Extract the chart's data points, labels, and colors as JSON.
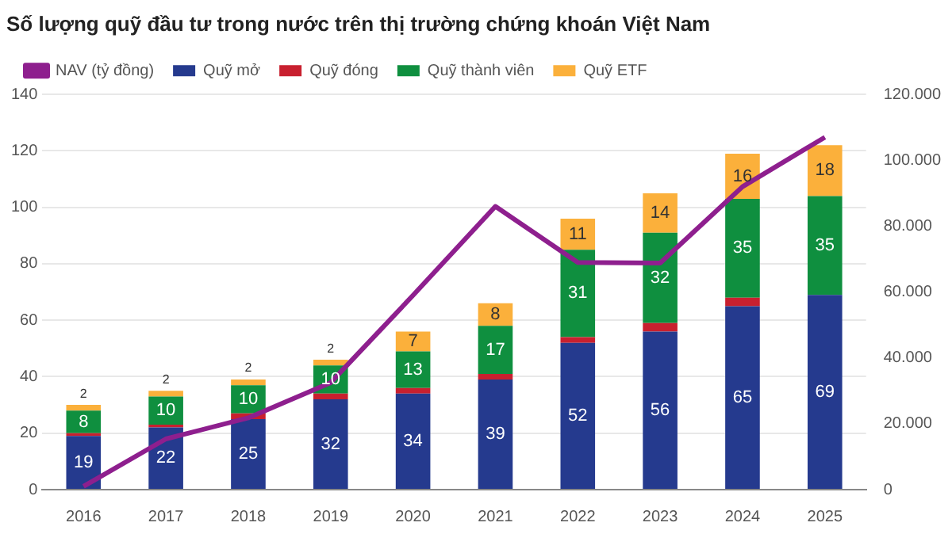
{
  "chart_data": {
    "type": "bar",
    "title": "Số lượng quỹ đầu tư trong nước trên thị trường chứng khoán Việt Nam",
    "stacked": true,
    "categories": [
      "2016",
      "2017",
      "2018",
      "2019",
      "2020",
      "2021",
      "2022",
      "2023",
      "2024",
      "2025"
    ],
    "series": [
      {
        "name": "Quỹ mở",
        "color": "#253a8e",
        "values": [
          19,
          22,
          25,
          32,
          34,
          39,
          52,
          56,
          65,
          69
        ],
        "value_labels": [
          "19",
          "22",
          "25",
          "32",
          "34",
          "39",
          "52",
          "56",
          "65",
          "69"
        ]
      },
      {
        "name": "Quỹ đóng",
        "color": "#c8202f",
        "values": [
          1,
          1,
          2,
          2,
          2,
          2,
          2,
          3,
          3,
          0
        ]
      },
      {
        "name": "Quỹ thành viên",
        "color": "#0f8f3f",
        "values": [
          8,
          10,
          10,
          10,
          13,
          17,
          31,
          32,
          35,
          35
        ],
        "value_labels": [
          "8",
          "10",
          "10",
          "10",
          "13",
          "17",
          "31",
          "32",
          "35",
          "35"
        ]
      },
      {
        "name": "Quỹ ETF",
        "color": "#fbb03b",
        "values": [
          2,
          2,
          2,
          2,
          7,
          8,
          11,
          14,
          16,
          18
        ],
        "value_labels": [
          "2",
          "2",
          "2",
          "2",
          "7",
          "8",
          "11",
          "14",
          "16",
          "18"
        ]
      },
      {
        "name": "NAV (tỷ đồng)",
        "type": "line",
        "axis": "y2",
        "color": "#8e1f8e",
        "values": [
          1000,
          15400,
          21800,
          32500,
          59000,
          86000,
          69000,
          68800,
          92000,
          107000
        ]
      }
    ],
    "ylim": [
      0,
      140
    ],
    "yticks": [
      0,
      20,
      40,
      60,
      80,
      100,
      120,
      140
    ],
    "y2lim": [
      0,
      120000
    ],
    "y2ticks": [
      {
        "value": 0,
        "label": "0"
      },
      {
        "value": 20000,
        "label": "20.000"
      },
      {
        "value": 40000,
        "label": "40.000"
      },
      {
        "value": 60000,
        "label": "60.000"
      },
      {
        "value": 80000,
        "label": "80.000"
      },
      {
        "value": 100000,
        "label": "100.000"
      },
      {
        "value": 120000,
        "label": "120.000"
      }
    ],
    "grid": "y",
    "legend": "top left",
    "marker": "none"
  }
}
